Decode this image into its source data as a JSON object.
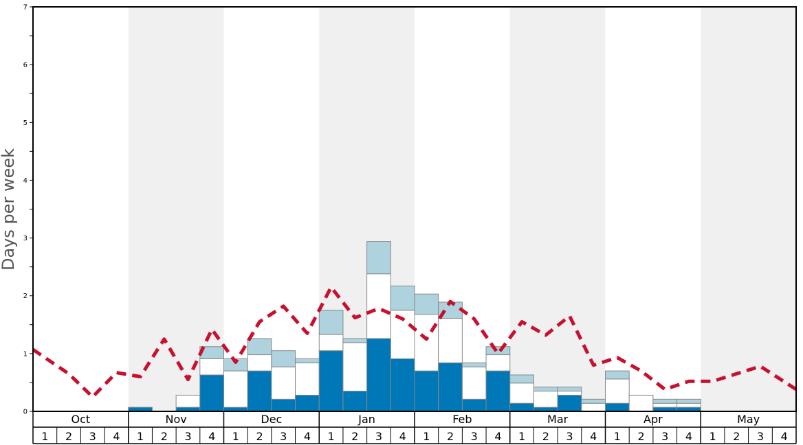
{
  "chart_data": {
    "type": "bar",
    "stacked": true,
    "ylabel": "Days per week",
    "xlabel": "",
    "title": "",
    "ylim": [
      0,
      7
    ],
    "y_ticks": [
      "0",
      "1",
      "2",
      "3",
      "4",
      "5",
      "6",
      "7"
    ],
    "months": [
      "Oct",
      "Nov",
      "Dec",
      "Jan",
      "Feb",
      "Mar",
      "Apr",
      "May"
    ],
    "week_labels": [
      "1",
      "2",
      "3",
      "4"
    ],
    "shaded_months": [
      "Nov",
      "Jan",
      "Mar",
      "May"
    ],
    "colors": {
      "bottom": "#0077b6",
      "middle": "#ffffff",
      "top": "#aed2de",
      "line": "#c8102e",
      "shade": "#f0f0f0",
      "bar_edge": "#888888"
    },
    "series": [
      {
        "values": [
          0,
          0,
          0,
          0,
          0.07,
          0,
          0.07,
          0.63,
          0.07,
          0.7,
          0.21,
          0.28,
          1.05,
          0.35,
          1.26,
          0.91,
          0.7,
          0.84,
          0.21,
          0.7,
          0.14,
          0.07,
          0.28,
          0,
          0.14,
          0,
          0.07,
          0.07,
          0,
          0,
          0,
          0
        ]
      },
      {
        "values": [
          0,
          0,
          0,
          0,
          0,
          0,
          0.21,
          0.28,
          0.63,
          0.28,
          0.56,
          0.56,
          0.28,
          0.84,
          1.12,
          0.84,
          0.98,
          0.77,
          0.56,
          0.28,
          0.35,
          0.28,
          0.07,
          0.14,
          0.42,
          0.28,
          0.07,
          0.07,
          0,
          0,
          0,
          0
        ]
      },
      {
        "values": [
          0,
          0,
          0,
          0,
          0,
          0,
          0,
          0.21,
          0.21,
          0.28,
          0.28,
          0.07,
          0.42,
          0.07,
          0.56,
          0.42,
          0.35,
          0.28,
          0.07,
          0.14,
          0.14,
          0.07,
          0.07,
          0.07,
          0.14,
          0,
          0.07,
          0.07,
          0,
          0,
          0,
          0
        ]
      },
      {
        "type": "line",
        "style": "dashed",
        "values": [
          1.07,
          0.65,
          0.25,
          0.67,
          0.6,
          1.25,
          0.55,
          1.42,
          0.85,
          1.55,
          1.82,
          1.35,
          2.15,
          1.62,
          1.78,
          1.6,
          1.25,
          1.9,
          1.6,
          1.0,
          1.55,
          1.32,
          1.65,
          0.8,
          0.93,
          0.7,
          0.38,
          0.52,
          0.52,
          0.65,
          0.78,
          0.38
        ]
      }
    ]
  }
}
